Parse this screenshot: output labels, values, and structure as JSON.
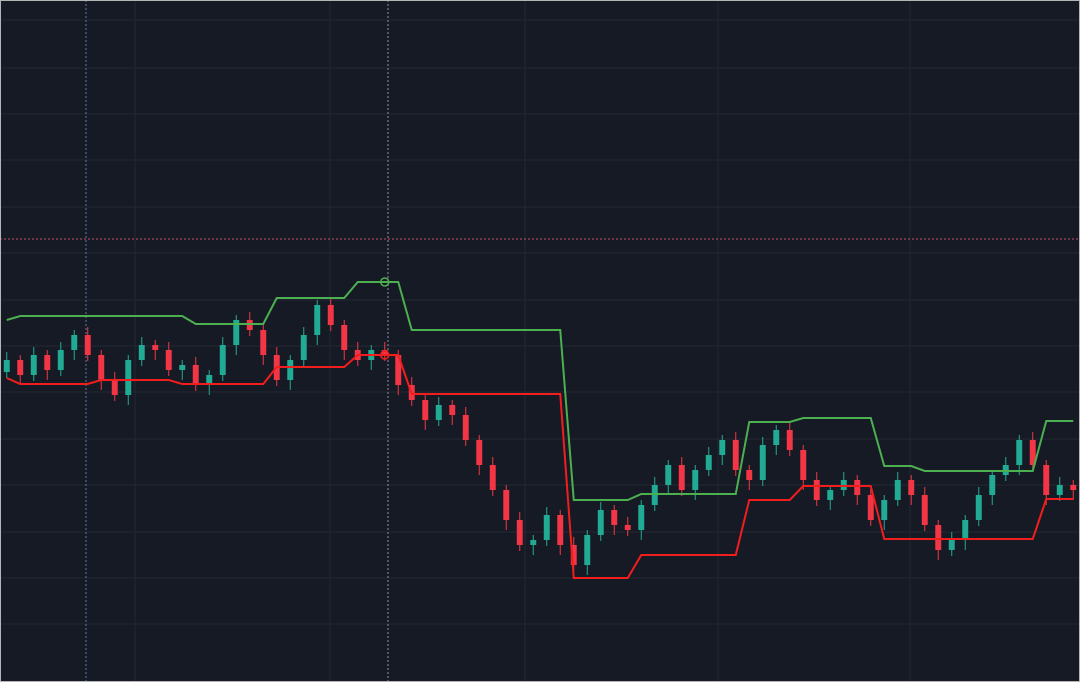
{
  "chart_data": {
    "type": "candlestick",
    "ylim": [
      0,
      682
    ],
    "up_color": "#22ab94",
    "down_color": "#f23645",
    "open": [
      310,
      322,
      307,
      327,
      312,
      332,
      347,
      327,
      302,
      287,
      322,
      337,
      332,
      312,
      317,
      297,
      307,
      337,
      362,
      352,
      327,
      302,
      322,
      347,
      377,
      357,
      332,
      322,
      332,
      327,
      297,
      282,
      262,
      277,
      267,
      242,
      217,
      192,
      162,
      137,
      142,
      167,
      137,
      117,
      147,
      172,
      157,
      152,
      177,
      197,
      217,
      192,
      212,
      227,
      242,
      212,
      202,
      237,
      252,
      232,
      202,
      182,
      192,
      202,
      187,
      162,
      182,
      202,
      187,
      157,
      132,
      142,
      162,
      187,
      207,
      217,
      242,
      217,
      187,
      197
    ],
    "high": [
      330,
      327,
      335,
      332,
      340,
      352,
      355,
      332,
      310,
      327,
      345,
      342,
      340,
      322,
      325,
      312,
      345,
      367,
      370,
      357,
      335,
      327,
      355,
      382,
      385,
      362,
      340,
      337,
      340,
      332,
      305,
      287,
      285,
      282,
      275,
      247,
      225,
      197,
      170,
      147,
      175,
      172,
      145,
      152,
      180,
      177,
      165,
      182,
      205,
      222,
      225,
      217,
      235,
      247,
      250,
      217,
      245,
      257,
      260,
      237,
      210,
      197,
      210,
      207,
      195,
      187,
      210,
      207,
      195,
      162,
      150,
      167,
      195,
      212,
      225,
      247,
      250,
      222,
      205,
      202
    ],
    "low": [
      304,
      297,
      301,
      302,
      306,
      322,
      321,
      292,
      281,
      277,
      316,
      322,
      306,
      302,
      291,
      287,
      301,
      327,
      346,
      317,
      296,
      292,
      316,
      337,
      351,
      322,
      316,
      312,
      321,
      287,
      276,
      252,
      256,
      257,
      236,
      207,
      186,
      152,
      131,
      127,
      136,
      127,
      111,
      107,
      141,
      147,
      146,
      142,
      171,
      187,
      186,
      182,
      206,
      217,
      206,
      192,
      196,
      227,
      226,
      192,
      176,
      172,
      186,
      177,
      156,
      152,
      176,
      177,
      151,
      122,
      126,
      132,
      156,
      177,
      201,
      207,
      211,
      177,
      181,
      182
    ],
    "close": [
      322,
      307,
      327,
      312,
      332,
      347,
      327,
      302,
      287,
      322,
      337,
      332,
      312,
      317,
      297,
      307,
      337,
      362,
      352,
      327,
      302,
      322,
      347,
      377,
      357,
      332,
      322,
      332,
      327,
      297,
      282,
      262,
      277,
      267,
      242,
      217,
      192,
      162,
      137,
      142,
      167,
      137,
      117,
      147,
      172,
      157,
      152,
      177,
      197,
      217,
      192,
      212,
      227,
      242,
      212,
      202,
      237,
      252,
      232,
      202,
      182,
      192,
      202,
      187,
      162,
      182,
      202,
      187,
      157,
      132,
      142,
      162,
      187,
      207,
      217,
      242,
      217,
      187,
      197,
      192
    ],
    "lines": [
      {
        "color": "#4caf50",
        "values": [
          362,
          366,
          366,
          366,
          366,
          366,
          366,
          366,
          366,
          366,
          366,
          366,
          366,
          366,
          358,
          358,
          358,
          358,
          358,
          358,
          384,
          384,
          384,
          384,
          384,
          384,
          400,
          400,
          400,
          400,
          352,
          352,
          352,
          352,
          352,
          352,
          352,
          352,
          352,
          352,
          352,
          352,
          182,
          182,
          182,
          182,
          182,
          188,
          188,
          188,
          188,
          188,
          188,
          188,
          188,
          260,
          260,
          260,
          260,
          264,
          264,
          264,
          264,
          264,
          264,
          216,
          216,
          216,
          211,
          211,
          211,
          211,
          211,
          211,
          211,
          211,
          211,
          261,
          261,
          261
        ]
      },
      {
        "color": "#f21d1d",
        "values": [
          304,
          298,
          298,
          298,
          298,
          298,
          298,
          302,
          302,
          302,
          302,
          302,
          302,
          298,
          298,
          298,
          298,
          298,
          298,
          298,
          315,
          315,
          315,
          315,
          315,
          315,
          327,
          327,
          327,
          327,
          288,
          288,
          288,
          288,
          288,
          288,
          288,
          288,
          288,
          288,
          288,
          288,
          104,
          104,
          104,
          104,
          104,
          127,
          127,
          127,
          127,
          127,
          127,
          127,
          127,
          182,
          182,
          182,
          182,
          196,
          196,
          196,
          196,
          196,
          196,
          143,
          143,
          143,
          143,
          143,
          143,
          143,
          143,
          143,
          143,
          143,
          143,
          183,
          183,
          183
        ]
      }
    ],
    "price_line": 443
  }
}
